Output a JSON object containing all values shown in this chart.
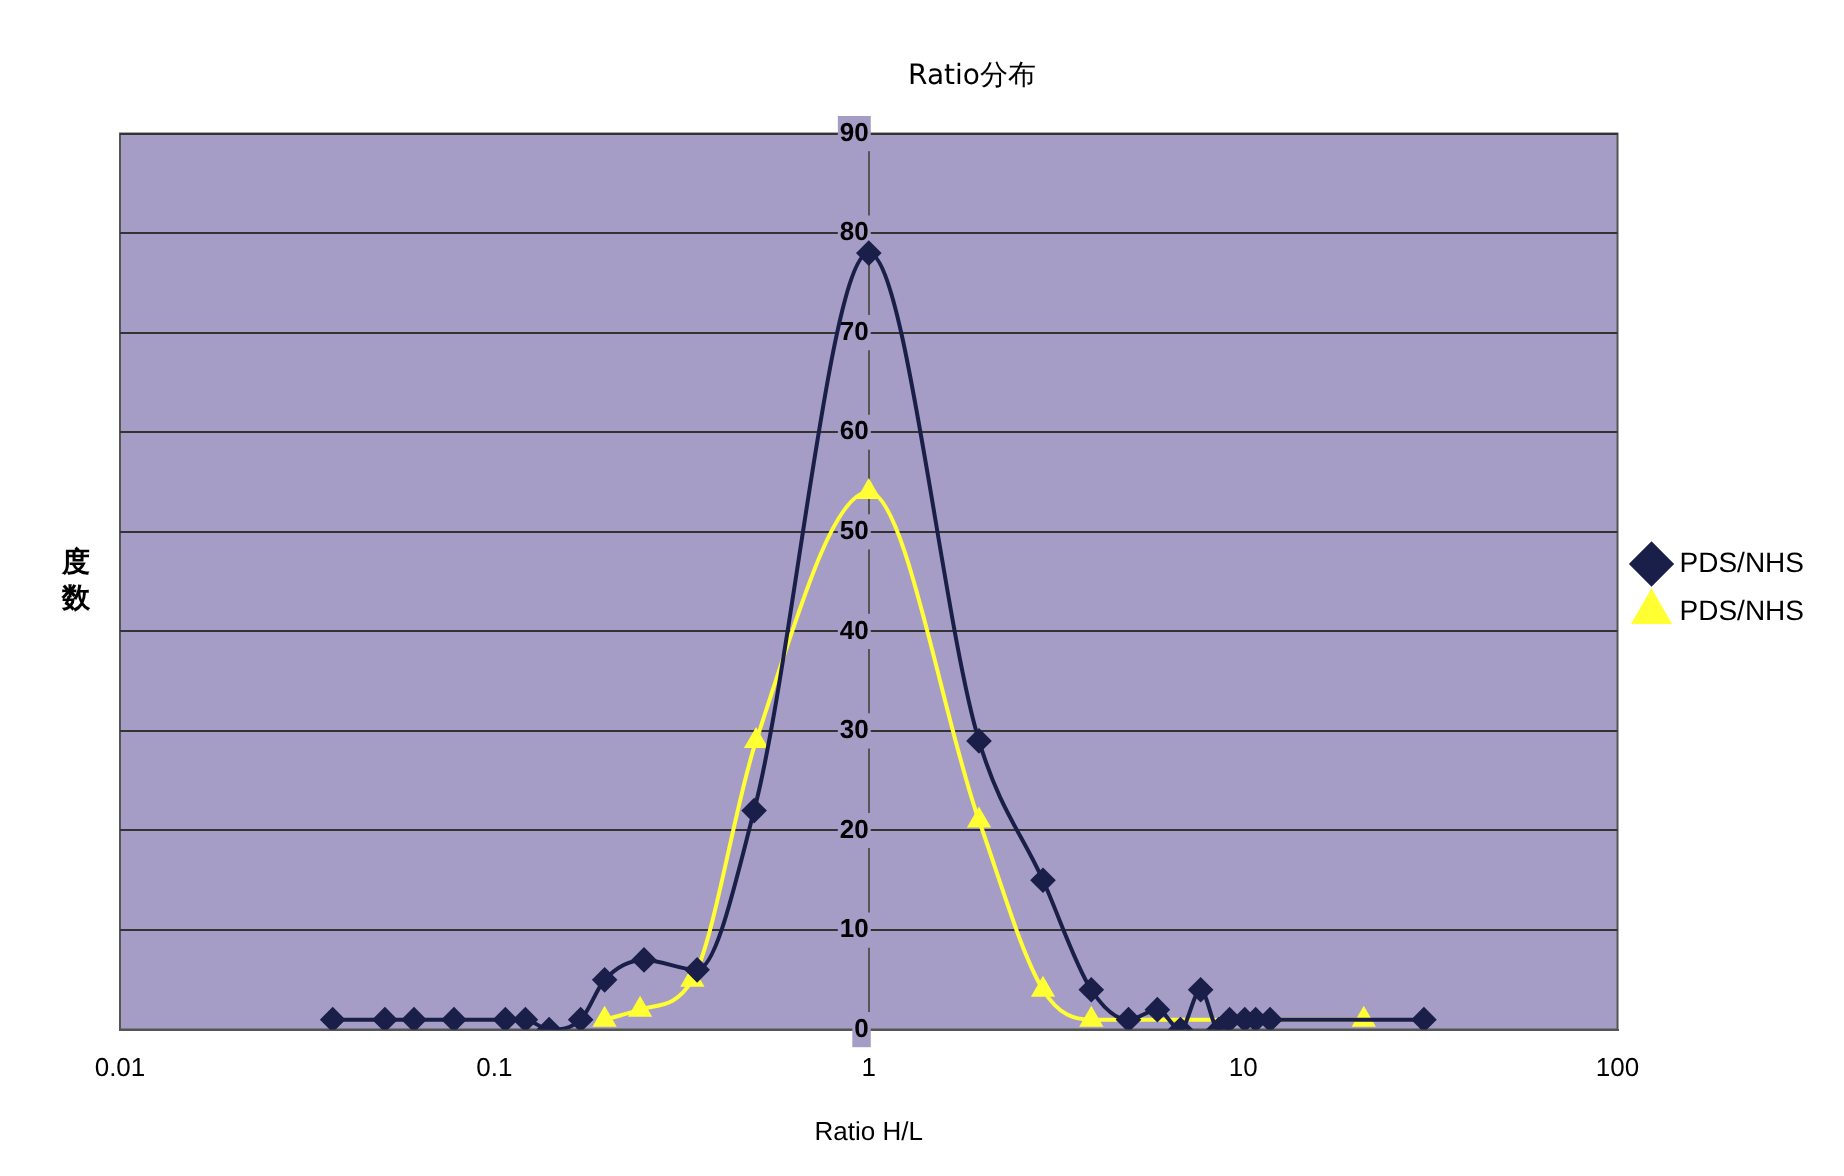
{
  "chart_data": {
    "type": "line",
    "title": "Ratio分布",
    "xlabel": "Ratio H/L",
    "ylabel": "度数",
    "log": "x",
    "grid": "y",
    "legend": "right",
    "xlim": [
      0.01,
      100
    ],
    "xticks": [
      0.01,
      0.1,
      1,
      10,
      100
    ],
    "ylim": [
      0,
      90
    ],
    "yticks": [
      0,
      10,
      20,
      30,
      40,
      50,
      60,
      70,
      80,
      90
    ],
    "series": [
      {
        "name": "PDS/NHS",
        "color": "#1a1f4a",
        "marker": "diamond",
        "x": [
          0.037,
          0.051,
          0.061,
          0.078,
          0.107,
          0.121,
          0.14,
          0.17,
          0.197,
          0.251,
          0.348,
          0.494,
          1,
          1.97,
          2.92,
          3.93,
          4.94,
          5.9,
          6.8,
          7.7,
          8.6,
          9.2,
          10.1,
          10.8,
          11.8,
          30.4
        ],
        "values": [
          1,
          1,
          1,
          1,
          1,
          1,
          0,
          1,
          5,
          7,
          6,
          22,
          78,
          29,
          15,
          4,
          1,
          2,
          0,
          4,
          0,
          1,
          1,
          1,
          1,
          1
        ]
      },
      {
        "name": "PDS/NHS",
        "color": "#ffff33",
        "marker": "triangle",
        "x": [
          0.197,
          0.245,
          0.338,
          0.5,
          1,
          1.97,
          2.92,
          3.93,
          21
        ],
        "values": [
          1,
          2,
          5,
          29,
          54,
          21,
          4,
          1,
          1
        ]
      }
    ]
  }
}
